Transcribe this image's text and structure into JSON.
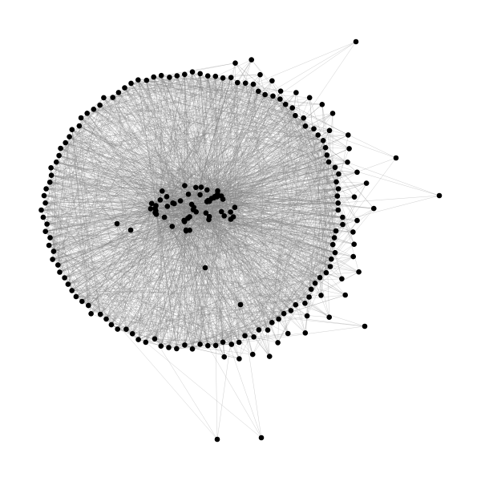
{
  "graph": {
    "type": "network",
    "edge_color": "#808080",
    "node_color": "#000000",
    "background": "#ffffff",
    "node_count": 218,
    "components": {
      "outer_ring": {
        "count": 120
      },
      "inner_cluster": {
        "count": 54
      },
      "right_fringe": {
        "count": 34
      },
      "outliers": {
        "count": 10
      }
    }
  }
}
